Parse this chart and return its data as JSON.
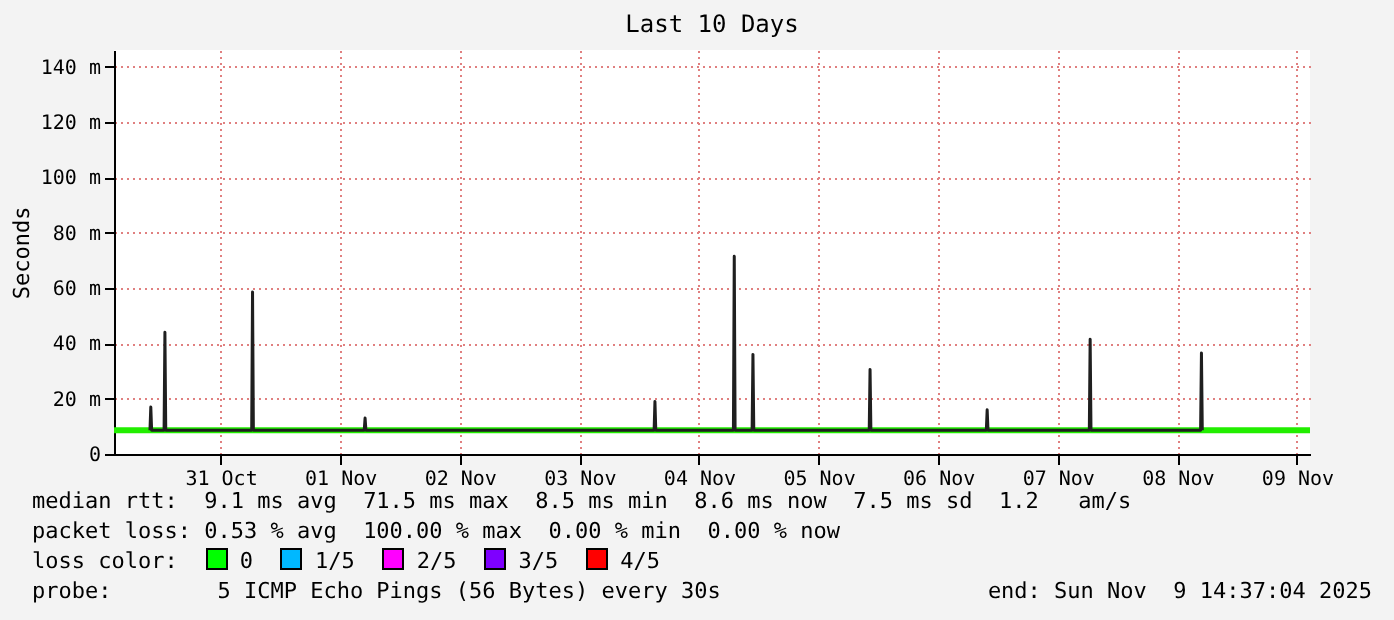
{
  "chart_data": {
    "type": "line",
    "title": "Last 10 Days",
    "ylabel": "Seconds",
    "xlim": [
      "2025-10-30T14:37",
      "2025-11-09T14:37"
    ],
    "xticks": [
      {
        "value": "2025-10-31T12:00",
        "label": "31 Oct"
      },
      {
        "value": "2025-11-01T12:00",
        "label": "01 Nov"
      },
      {
        "value": "2025-11-02T12:00",
        "label": "02 Nov"
      },
      {
        "value": "2025-11-03T12:00",
        "label": "03 Nov"
      },
      {
        "value": "2025-11-04T12:00",
        "label": "04 Nov"
      },
      {
        "value": "2025-11-05T12:00",
        "label": "05 Nov"
      },
      {
        "value": "2025-11-06T12:00",
        "label": "06 Nov"
      },
      {
        "value": "2025-11-07T12:00",
        "label": "07 Nov"
      },
      {
        "value": "2025-11-08T12:00",
        "label": "08 Nov"
      },
      {
        "value": "2025-11-09T12:00",
        "label": "09 Nov"
      }
    ],
    "ylim": [
      0,
      146
    ],
    "yticks": [
      0,
      {
        "value": 20,
        "label": "20 m"
      },
      {
        "value": 40,
        "label": "40 m"
      },
      {
        "value": 60,
        "label": "60 m"
      },
      {
        "value": 80,
        "label": "80 m"
      },
      {
        "value": 100,
        "label": "100 m"
      },
      {
        "value": 120,
        "label": "120 m"
      },
      {
        "value": 140,
        "label": "140 m"
      }
    ],
    "grid": true,
    "marker": "none",
    "series": [
      {
        "color": "#22ee00",
        "x": [
          "2025-10-30T14:37",
          "2025-11-09T14:37"
        ],
        "values": [
          8.6,
          8.6
        ]
      },
      {
        "color": "#1f1f1f",
        "x": [
          "2025-10-30T21:50",
          "2025-10-30T22:00",
          "2025-10-30T22:10",
          "2025-10-31T00:40",
          "2025-10-31T00:50",
          "2025-10-31T01:00",
          "2025-10-31T18:15",
          "2025-10-31T18:25",
          "2025-10-31T18:35",
          "2025-11-01T16:50",
          "2025-11-01T17:00",
          "2025-11-01T17:10",
          "2025-11-04T03:00",
          "2025-11-04T03:10",
          "2025-11-04T03:20",
          "2025-11-04T18:55",
          "2025-11-04T19:05",
          "2025-11-04T19:15",
          "2025-11-04T22:40",
          "2025-11-04T22:50",
          "2025-11-04T23:00",
          "2025-11-05T22:10",
          "2025-11-05T22:20",
          "2025-11-05T22:30",
          "2025-11-06T21:40",
          "2025-11-06T21:50",
          "2025-11-06T22:00",
          "2025-11-07T18:20",
          "2025-11-07T18:30",
          "2025-11-07T18:40",
          "2025-11-08T16:40",
          "2025-11-08T16:50",
          "2025-11-08T17:00"
        ],
        "values": [
          8.6,
          17,
          8.6,
          8.6,
          44,
          8.6,
          8.6,
          58.5,
          8.6,
          8.6,
          13,
          8.6,
          8.6,
          19,
          8.6,
          8.6,
          71.5,
          8.6,
          8.6,
          36,
          8.6,
          8.6,
          30.5,
          8.6,
          8.6,
          16,
          8.6,
          8.6,
          41.5,
          8.6,
          8.6,
          36.5,
          8.6
        ]
      }
    ],
    "annotations": [
      "median rtt:  9.1 ms avg  71.5 ms max  8.5 ms min  8.6 ms now  7.5 ms sd  1.2   am/s",
      "packet loss: 0.53 % avg  100.00 % max  0.00 % min  0.00 % now",
      "loss color:",
      "0",
      "1/5",
      "2/5",
      "3/5",
      "4/5",
      "probe:        5 ICMP Echo Pings (56 Bytes) every 30s",
      "end: Sun Nov  9 14:37:04 2025"
    ]
  }
}
